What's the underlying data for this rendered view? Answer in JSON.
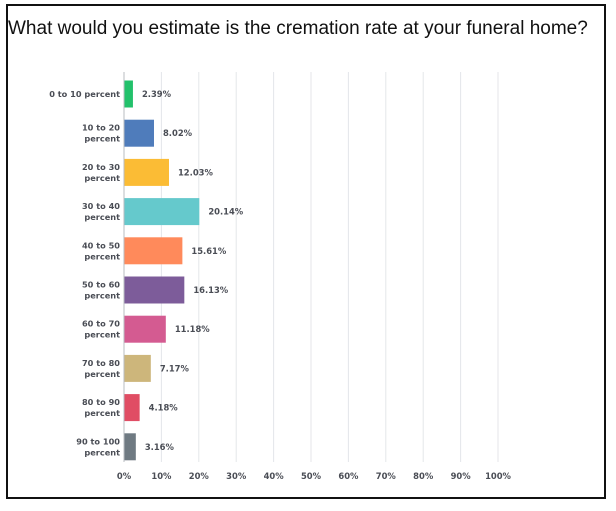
{
  "chart_data": {
    "type": "bar",
    "orientation": "horizontal",
    "title": "What would you estimate is the cremation rate at your funeral home?",
    "categories": [
      "0 to 10 percent",
      "10 to 20 percent",
      "20 to 30 percent",
      "30 to 40 percent",
      "40 to 50 percent",
      "50 to 60 percent",
      "60 to 70 percent",
      "70 to 80 percent",
      "80 to 90 percent",
      "90 to 100 percent"
    ],
    "category_lines": [
      [
        "0 to 10 percent"
      ],
      [
        "10 to 20",
        "percent"
      ],
      [
        "20 to 30",
        "percent"
      ],
      [
        "30 to 40",
        "percent"
      ],
      [
        "40 to 50",
        "percent"
      ],
      [
        "50 to 60",
        "percent"
      ],
      [
        "60 to 70",
        "percent"
      ],
      [
        "70 to 80",
        "percent"
      ],
      [
        "80 to 90",
        "percent"
      ],
      [
        "90 to 100",
        "percent"
      ]
    ],
    "values": [
      2.39,
      8.02,
      12.03,
      20.14,
      15.61,
      16.13,
      11.18,
      7.17,
      4.18,
      3.16
    ],
    "value_labels": [
      "2.39%",
      "8.02%",
      "12.03%",
      "20.14%",
      "15.61%",
      "16.13%",
      "11.18%",
      "7.17%",
      "4.18%",
      "3.16%"
    ],
    "colors": [
      "#22c16b",
      "#4f7cbb",
      "#fbbc35",
      "#65c9cc",
      "#ff8a5b",
      "#7d5c9a",
      "#d45b91",
      "#cdb67b",
      "#e04d64",
      "#6f7a82"
    ],
    "xlim": [
      0,
      100
    ],
    "xticks": [
      "0%",
      "10%",
      "20%",
      "30%",
      "40%",
      "50%",
      "60%",
      "70%",
      "80%",
      "90%",
      "100%"
    ],
    "grid": true
  }
}
